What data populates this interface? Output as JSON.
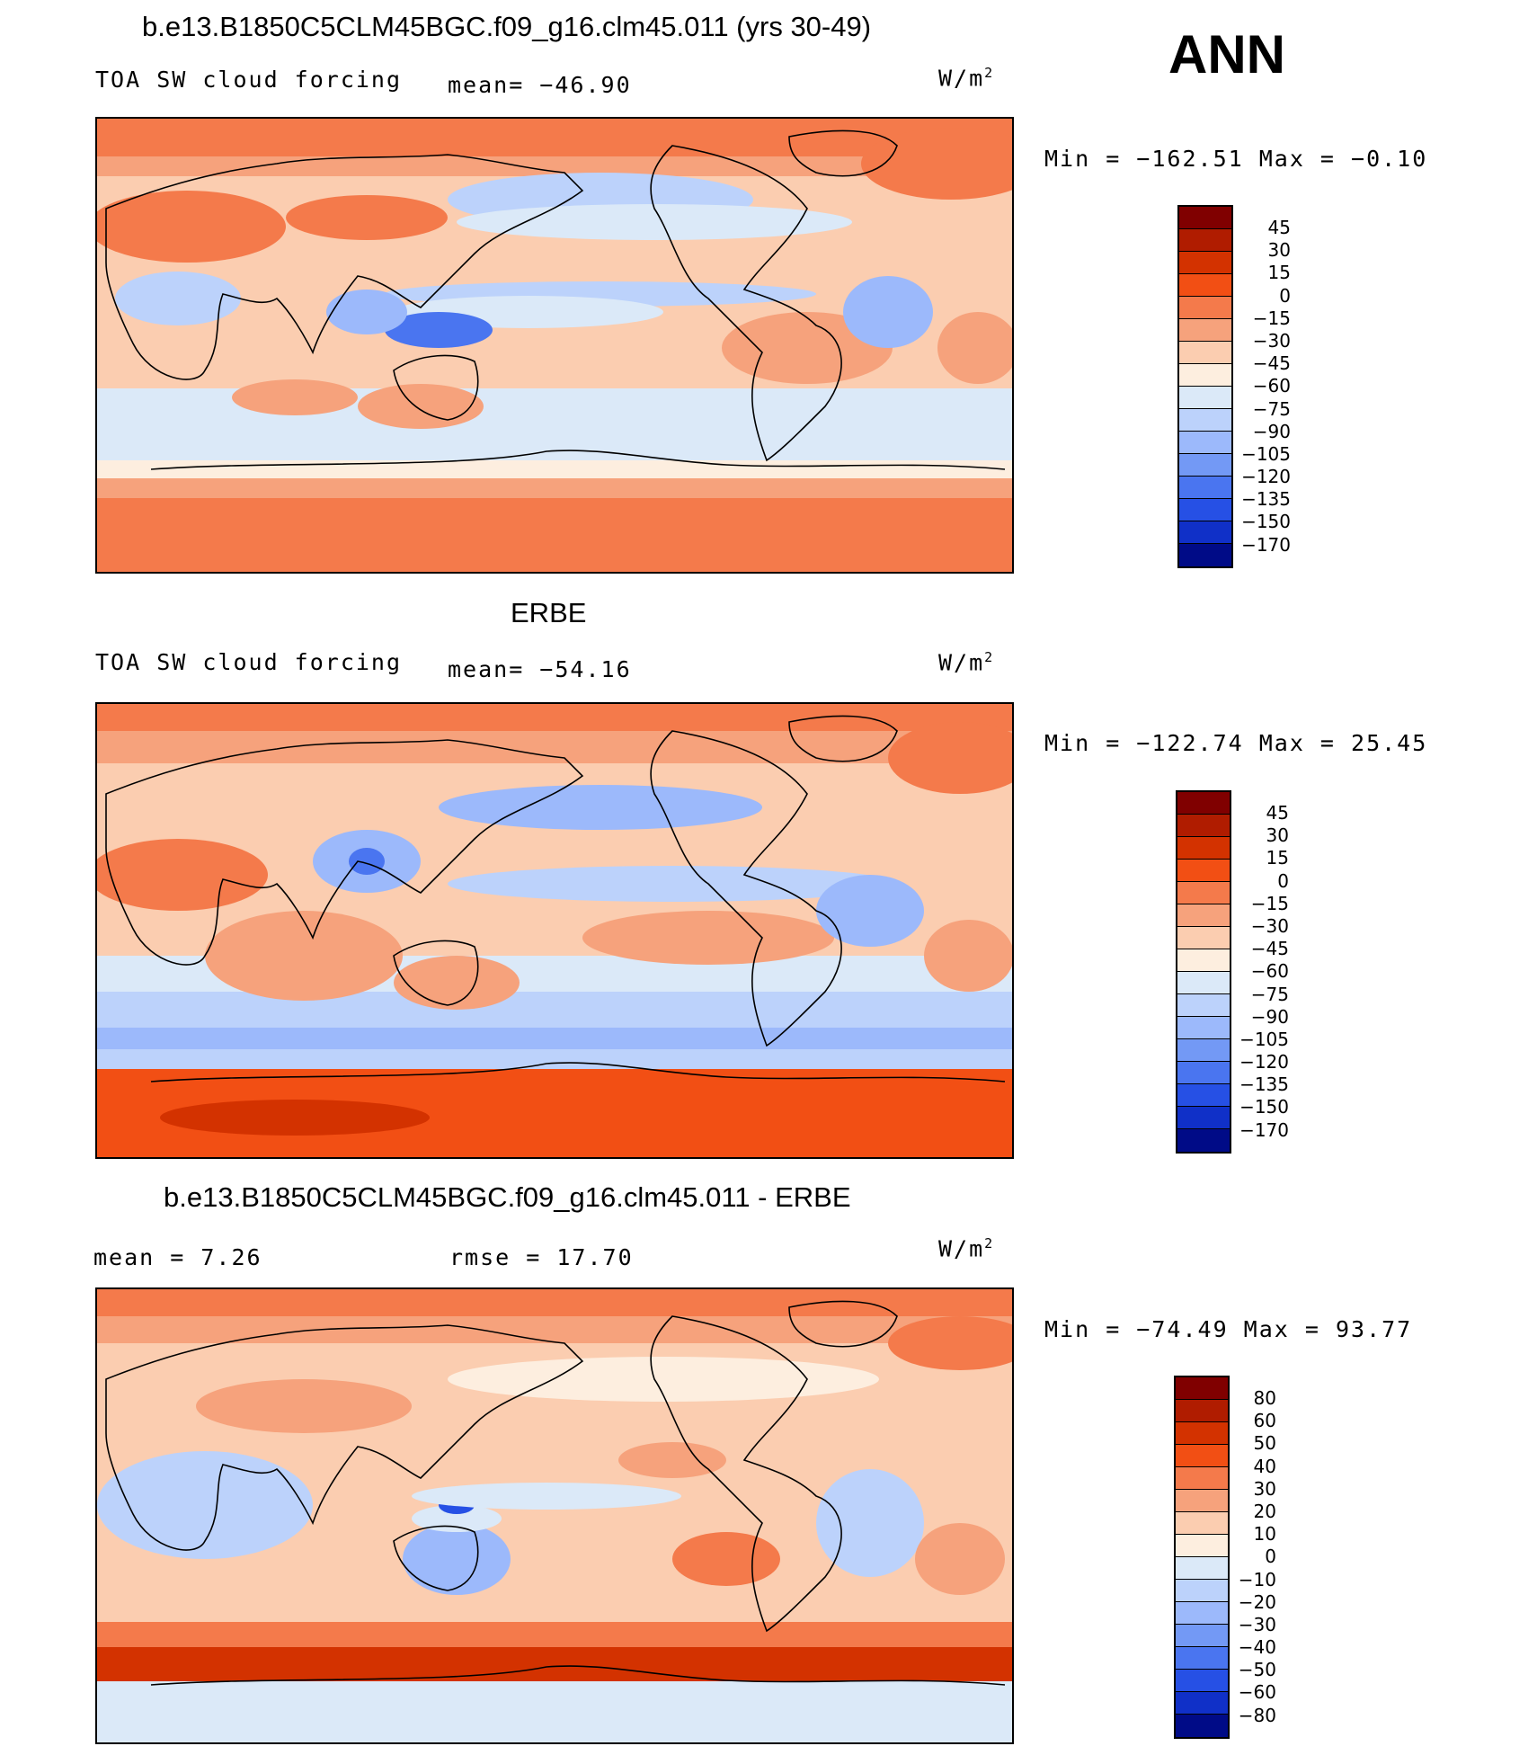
{
  "season": "ANN",
  "panels": [
    {
      "title": "b.e13.B1850C5CLM45BGC.f09_g16.clm45.011 (yrs 30-49)",
      "left_label": "TOA SW cloud forcing",
      "mid_label": "mean= −46.90",
      "units": "W/m",
      "units_sup": "2",
      "minmax": "Min = −162.51 Max = −0.10",
      "scale": "abs"
    },
    {
      "title": "ERBE",
      "left_label": "TOA SW cloud forcing",
      "mid_label": "mean= −54.16",
      "units": "W/m",
      "units_sup": "2",
      "minmax": "Min = −122.74 Max = 25.45",
      "scale": "abs"
    },
    {
      "title": "b.e13.B1850C5CLM45BGC.f09_g16.clm45.011 - ERBE",
      "left_label": "mean = 7.26",
      "mid_label": "rmse = 17.70",
      "units": "W/m",
      "units_sup": "2",
      "minmax": "Min = −74.49 Max = 93.77",
      "scale": "diff"
    }
  ],
  "colorbars": {
    "abs": {
      "levels": [
        "45",
        "30",
        "15",
        "0",
        "−15",
        "−30",
        "−45",
        "−60",
        "−75",
        "−90",
        "−105",
        "−120",
        "−135",
        "−150",
        "−170"
      ],
      "colors": [
        "#800000",
        "#b01c00",
        "#d33200",
        "#f24f14",
        "#f47a4b",
        "#f6a27c",
        "#fbcdb0",
        "#fdeedf",
        "#dbe9f8",
        "#bcd2fb",
        "#9cb9fb",
        "#7399f5",
        "#4a75f0",
        "#2650e5",
        "#1030c8",
        "#000b87"
      ]
    },
    "diff": {
      "levels": [
        "80",
        "60",
        "50",
        "40",
        "30",
        "20",
        "10",
        "0",
        "−10",
        "−20",
        "−30",
        "−40",
        "−50",
        "−60",
        "−80"
      ],
      "colors": [
        "#800000",
        "#b01c00",
        "#d33200",
        "#f24f14",
        "#f47a4b",
        "#f6a27c",
        "#fbcdb0",
        "#fdeedf",
        "#dbe9f8",
        "#bcd2fb",
        "#9cb9fb",
        "#7399f5",
        "#4a75f0",
        "#2650e5",
        "#1030c8",
        "#000b87"
      ]
    }
  }
}
